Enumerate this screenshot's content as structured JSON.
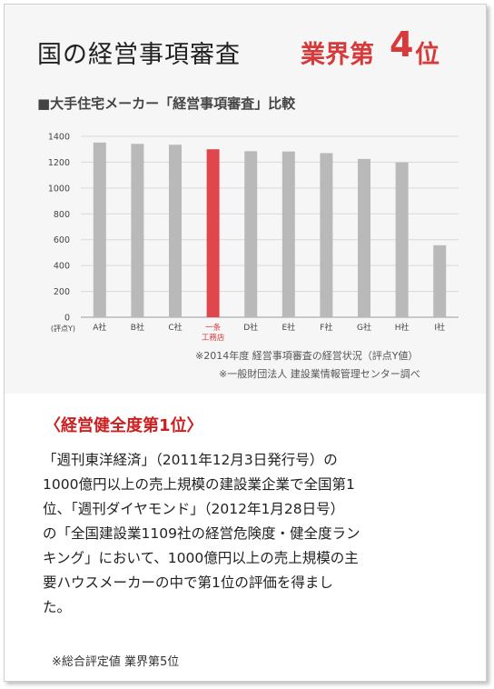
{
  "header": {
    "title": "国の経営事項審査",
    "rank_prefix": "業界第",
    "rank_number": "4",
    "rank_suffix": "位"
  },
  "chart_heading": "■大手住宅メーカー「経営事項審査」比較",
  "chart_data": {
    "type": "bar",
    "title": "大手住宅メーカー「経営事項審査」比較",
    "ylabel": "(評点Y)",
    "ylim": [
      0,
      1400
    ],
    "yticks": [
      0,
      200,
      400,
      600,
      800,
      1000,
      1200,
      1400
    ],
    "grid": true,
    "categories": [
      "A社",
      "B社",
      "C社",
      "一条工務店",
      "D社",
      "E社",
      "F社",
      "G社",
      "H社",
      "I社"
    ],
    "category_labels": [
      [
        "A社"
      ],
      [
        "B社"
      ],
      [
        "C社"
      ],
      [
        "一条",
        "工務店"
      ],
      [
        "D社"
      ],
      [
        "E社"
      ],
      [
        "F社"
      ],
      [
        "G社"
      ],
      [
        "H社"
      ],
      [
        "I社"
      ]
    ],
    "values": [
      1352,
      1342,
      1335,
      1300,
      1285,
      1283,
      1270,
      1225,
      1198,
      557
    ],
    "highlight_index": 3,
    "colors": {
      "bar": "#b9b9b9",
      "highlight": "#e0474c",
      "highlight_label": "#d63a3a"
    }
  },
  "notes": [
    "※2014年度 経営事項審査の経営状況（評点Y値）",
    "※一般財団法人 建設業情報管理センター調べ"
  ],
  "rank_heading": "〈経営健全度第1位〉",
  "body_lines": [
    "「週刊東洋経済」（2011年12月3日発行号）の",
    "1000億円以上の売上規模の建設業企業で全国第1",
    "位、「週刊ダイヤモンド」（2012年1月28日号）",
    "の「全国建設業1109社の経営危険度・健全度ラン",
    "キング」において、1000億円以上の売上規模の主",
    "要ハウスメーカーの中で第1位の評価を得まし",
    "た。"
  ],
  "footnote": "※総合評定値 業界第5位"
}
